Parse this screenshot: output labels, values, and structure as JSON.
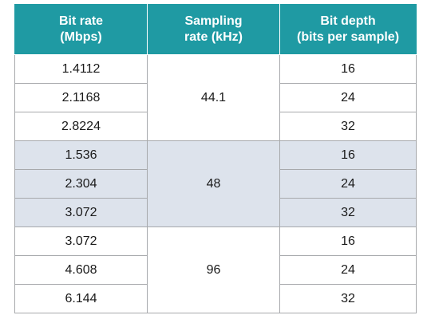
{
  "table": {
    "headers": [
      [
        "Bit rate",
        "(Mbps)"
      ],
      [
        "Sampling",
        "rate (kHz)"
      ],
      [
        "Bit depth",
        "(bits per sample)"
      ]
    ],
    "rows": [
      {
        "bit_rate": "1.4112",
        "bit_depth": "16"
      },
      {
        "bit_rate": "2.1168",
        "bit_depth": "24"
      },
      {
        "bit_rate": "2.8224",
        "bit_depth": "32"
      },
      {
        "bit_rate": "1.536",
        "bit_depth": "16"
      },
      {
        "bit_rate": "2.304",
        "bit_depth": "24"
      },
      {
        "bit_rate": "3.072",
        "bit_depth": "32"
      },
      {
        "bit_rate": "3.072",
        "bit_depth": "16"
      },
      {
        "bit_rate": "4.608",
        "bit_depth": "24"
      },
      {
        "bit_rate": "6.144",
        "bit_depth": "32"
      }
    ],
    "sampling_rates": [
      "44.1",
      "48",
      "96"
    ]
  },
  "colors": {
    "header_bg": "#1f9aa3",
    "shaded_row_bg": "#dde3ec",
    "border": "#a7a9ac"
  }
}
